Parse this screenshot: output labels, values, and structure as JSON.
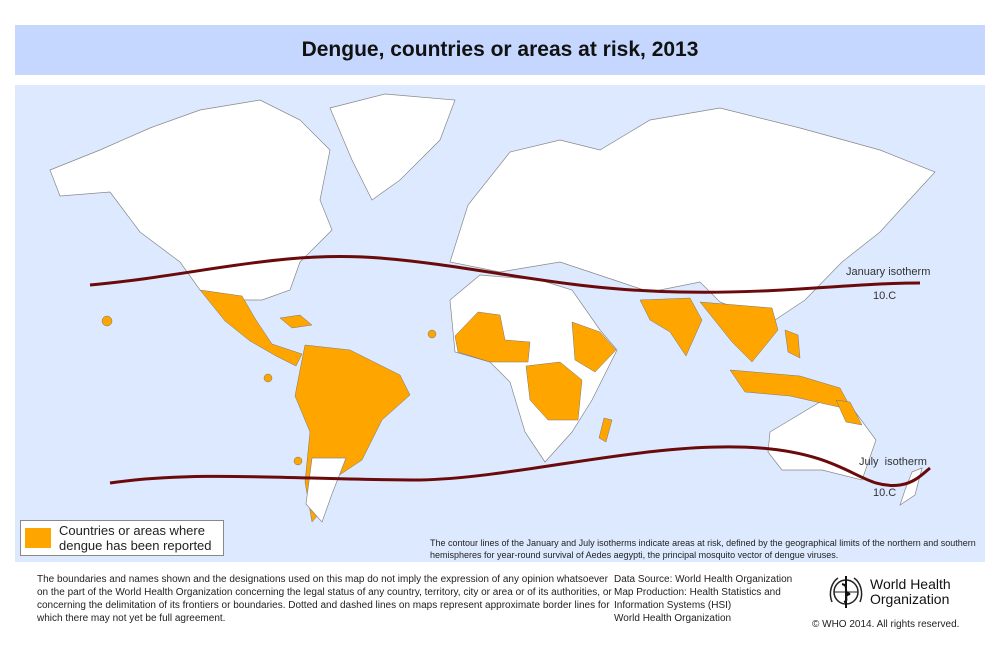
{
  "title": "Dengue, countries or areas at risk, 2013",
  "colors": {
    "title_bar": "#c6d7ff",
    "ocean": "#dce9ff",
    "risk": "#ffa500",
    "land": "#ffffff",
    "isotherm": "#6b0a0a"
  },
  "isotherms": {
    "january": {
      "label": "January isotherm",
      "value": "10.C"
    },
    "july": {
      "label": "July  isotherm",
      "value": "10.C"
    }
  },
  "legend": {
    "text_line1": "Countries or areas where",
    "text_line2": "dengue has been reported"
  },
  "note": "The contour lines of the January and July isotherms indicate areas at risk, defined by the geographical limits of the northern and southern hemispheres for year-round survival of Aedes aegypti, the principal mosquito vector of dengue viruses.",
  "disclaimer": "The boundaries and names shown and the designations used on this map do not imply the expression of any opinion whatsoever on the part of the World Health Organization concerning the legal status of any country, territory, city or area or of its authorities, or concerning the delimitation of its frontiers or boundaries. Dotted and dashed lines on maps represent approximate border lines for which there may not yet be full agreement.",
  "source": {
    "line1": "Data Source: World Health Organization",
    "line2": "Map Production: Health Statistics and",
    "line3": "Information Systems (HSI)",
    "line4": "World Health Organization"
  },
  "logo": {
    "name_line1": "World Health",
    "name_line2": "Organization"
  },
  "copyright": "© WHO 2014. All rights reserved."
}
